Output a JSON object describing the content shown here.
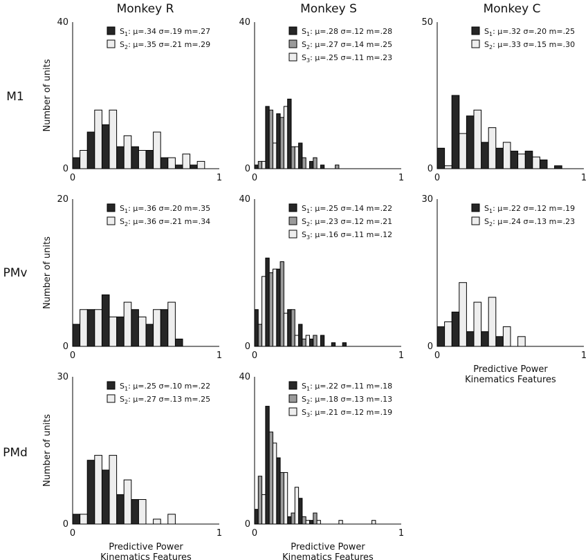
{
  "columns": [
    "Monkey R",
    "Monkey S",
    "Monkey C"
  ],
  "rows": [
    "M1",
    "PMv",
    "PMd"
  ],
  "y_axis_label": "Number of units",
  "x_axis_label_line1": "Predictive Power",
  "x_axis_label_line2": "Kinematics Features",
  "series_colors": {
    "S1": "#262626",
    "S2": "#9a9a9a",
    "S3": "#eeeeee"
  },
  "chart_data": [
    {
      "type": "bar",
      "row": "M1",
      "column": "Monkey R",
      "ylim": [
        0,
        40
      ],
      "xlim": [
        0,
        1
      ],
      "xticks": [
        "0",
        "1"
      ],
      "yticks": [
        "0",
        "40"
      ],
      "bin_width": 0.1,
      "series": [
        {
          "name": "S1",
          "color": "dark",
          "legend": {
            "label": "S",
            "sub": "1",
            "stats": ": μ=.34 σ=.19 m=.27"
          },
          "bins": [
            0.0,
            0.1,
            0.2,
            0.3,
            0.4,
            0.5,
            0.6,
            0.7,
            0.8
          ],
          "values": [
            3,
            10,
            12,
            6,
            6,
            5,
            3,
            1,
            1
          ]
        },
        {
          "name": "S2",
          "color": "white",
          "legend": {
            "label": "S",
            "sub": "2",
            "stats": ": μ=.35 σ=.21 m=.29"
          },
          "bins": [
            0.0,
            0.1,
            0.2,
            0.3,
            0.4,
            0.5,
            0.6,
            0.7,
            0.8
          ],
          "values": [
            5,
            16,
            16,
            9,
            5,
            10,
            3,
            4,
            2
          ]
        }
      ],
      "xlabel_shown": false
    },
    {
      "type": "bar",
      "row": "M1",
      "column": "Monkey S",
      "ylim": [
        0,
        40
      ],
      "xlim": [
        0,
        1
      ],
      "xticks": [
        "0",
        "1"
      ],
      "yticks": [
        "0",
        "40"
      ],
      "bin_width": 0.075,
      "series": [
        {
          "name": "S1",
          "color": "dark",
          "legend": {
            "label": "S",
            "sub": "1",
            "stats": ": μ=.28 σ=.12 m=.28"
          },
          "bins": [
            0.0,
            0.075,
            0.15,
            0.225,
            0.3,
            0.375,
            0.45,
            0.525,
            0.6,
            0.675
          ],
          "values": [
            1,
            17,
            15,
            19,
            7,
            2,
            1,
            0,
            0,
            0
          ]
        },
        {
          "name": "S2",
          "color": "grey",
          "legend": {
            "label": "S",
            "sub": "2",
            "stats": ": μ=.27 σ=.14 m=.25"
          },
          "bins": [
            0.0,
            0.075,
            0.15,
            0.225,
            0.3,
            0.375,
            0.45,
            0.525,
            0.6,
            0.675
          ],
          "values": [
            2,
            16,
            14,
            6,
            3,
            3,
            0,
            1,
            0,
            0
          ]
        },
        {
          "name": "S3",
          "color": "white",
          "legend": {
            "label": "S",
            "sub": "3",
            "stats": ": μ=.25 σ=.11 m=.23"
          },
          "bins": [
            0.0,
            0.075,
            0.15,
            0.225,
            0.3,
            0.375,
            0.45,
            0.525,
            0.6,
            0.675
          ],
          "values": [
            2,
            7,
            17,
            6,
            0,
            0,
            0,
            0,
            0,
            0
          ]
        }
      ],
      "xlabel_shown": false
    },
    {
      "type": "bar",
      "row": "M1",
      "column": "Monkey C",
      "ylim": [
        0,
        50
      ],
      "xlim": [
        0,
        1
      ],
      "xticks": [
        "0",
        "1"
      ],
      "yticks": [
        "0",
        "50"
      ],
      "bin_width": 0.1,
      "series": [
        {
          "name": "S1",
          "color": "dark",
          "legend": {
            "label": "S",
            "sub": "1",
            "stats": ": μ=.32 σ=.20 m=.25"
          },
          "bins": [
            0.0,
            0.1,
            0.2,
            0.3,
            0.4,
            0.5,
            0.6,
            0.7,
            0.8
          ],
          "values": [
            7,
            25,
            18,
            9,
            7,
            6,
            6,
            3,
            1
          ]
        },
        {
          "name": "S2",
          "color": "white",
          "legend": {
            "label": "S",
            "sub": "2",
            "stats": ": μ=.33 σ=.15 m=.30"
          },
          "bins": [
            0.0,
            0.1,
            0.2,
            0.3,
            0.4,
            0.5,
            0.6,
            0.7,
            0.8
          ],
          "values": [
            1,
            12,
            20,
            14,
            9,
            5,
            4,
            0,
            0
          ]
        }
      ],
      "xlabel_shown": false
    },
    {
      "type": "bar",
      "row": "PMv",
      "column": "Monkey R",
      "ylim": [
        0,
        20
      ],
      "xlim": [
        0,
        1
      ],
      "xticks": [
        "0",
        "1"
      ],
      "yticks": [
        "0",
        "20"
      ],
      "bin_width": 0.1,
      "series": [
        {
          "name": "S1",
          "color": "dark",
          "legend": {
            "label": "S",
            "sub": "1",
            "stats": ": μ=.36 σ=.20 m=.35"
          },
          "bins": [
            0.0,
            0.1,
            0.2,
            0.3,
            0.4,
            0.5,
            0.6,
            0.7
          ],
          "values": [
            3,
            5,
            7,
            4,
            5,
            3,
            5,
            1
          ]
        },
        {
          "name": "S2",
          "color": "white",
          "legend": {
            "label": "S",
            "sub": "2",
            "stats": ": μ=.36 σ=.21 m=.34"
          },
          "bins": [
            0.0,
            0.1,
            0.2,
            0.3,
            0.4,
            0.5,
            0.6,
            0.7
          ],
          "values": [
            5,
            5,
            4,
            6,
            4,
            5,
            6,
            0
          ]
        }
      ],
      "xlabel_shown": false
    },
    {
      "type": "bar",
      "row": "PMv",
      "column": "Monkey S",
      "ylim": [
        0,
        40
      ],
      "xlim": [
        0,
        1
      ],
      "xticks": [
        "0",
        "1"
      ],
      "yticks": [
        "0",
        "40"
      ],
      "bin_width": 0.075,
      "series": [
        {
          "name": "S1",
          "color": "dark",
          "legend": {
            "label": "S",
            "sub": "1",
            "stats": ": μ=.25 σ=.14 m=.22"
          },
          "bins": [
            0.0,
            0.075,
            0.15,
            0.225,
            0.3,
            0.375,
            0.45,
            0.525,
            0.6,
            0.675
          ],
          "values": [
            10,
            24,
            21,
            10,
            6,
            2,
            3,
            1,
            1,
            0
          ]
        },
        {
          "name": "S2",
          "color": "grey",
          "legend": {
            "label": "S",
            "sub": "2",
            "stats": ": μ=.23 σ=.12 m=.21"
          },
          "bins": [
            0.0,
            0.075,
            0.15,
            0.225,
            0.3,
            0.375,
            0.45,
            0.525,
            0.6,
            0.675
          ],
          "values": [
            6,
            20,
            23,
            10,
            2,
            3,
            0,
            0,
            0,
            0
          ]
        },
        {
          "name": "S3",
          "color": "white",
          "legend": {
            "label": "S",
            "sub": "3",
            "stats": ": μ=.16 σ=.11 m=.12"
          },
          "bins": [
            0.0,
            0.075,
            0.15,
            0.225,
            0.3,
            0.375,
            0.45,
            0.525,
            0.6,
            0.675
          ],
          "values": [
            19,
            21,
            9,
            3,
            3,
            0,
            0,
            0,
            0,
            0
          ]
        }
      ],
      "xlabel_shown": false
    },
    {
      "type": "bar",
      "row": "PMv",
      "column": "Monkey C",
      "ylim": [
        0,
        30
      ],
      "xlim": [
        0,
        1
      ],
      "xticks": [
        "0",
        "1"
      ],
      "yticks": [
        "0",
        "30"
      ],
      "bin_width": 0.1,
      "series": [
        {
          "name": "S1",
          "color": "dark",
          "legend": {
            "label": "S",
            "sub": "1",
            "stats": ": μ=.22 σ=.12 m=.19"
          },
          "bins": [
            0.0,
            0.1,
            0.2,
            0.3,
            0.4,
            0.5
          ],
          "values": [
            4,
            7,
            3,
            3,
            2,
            0
          ]
        },
        {
          "name": "S2",
          "color": "white",
          "legend": {
            "label": "S",
            "sub": "2",
            "stats": ": μ=.24 σ=.13 m=.23"
          },
          "bins": [
            0.0,
            0.1,
            0.2,
            0.3,
            0.4,
            0.5
          ],
          "values": [
            5,
            13,
            9,
            10,
            4,
            2
          ]
        }
      ],
      "xlabel_shown": true
    },
    {
      "type": "bar",
      "row": "PMd",
      "column": "Monkey R",
      "ylim": [
        0,
        30
      ],
      "xlim": [
        0,
        1
      ],
      "xticks": [
        "0",
        "1"
      ],
      "yticks": [
        "0",
        "30"
      ],
      "bin_width": 0.1,
      "series": [
        {
          "name": "S1",
          "color": "dark",
          "legend": {
            "label": "S",
            "sub": "1",
            "stats": ": μ=.25 σ=.10 m=.22"
          },
          "bins": [
            0.0,
            0.1,
            0.2,
            0.3,
            0.4,
            0.5,
            0.6
          ],
          "values": [
            2,
            13,
            11,
            6,
            5,
            0,
            0
          ]
        },
        {
          "name": "S2",
          "color": "white",
          "legend": {
            "label": "S",
            "sub": "2",
            "stats": ": μ=.27 σ=.13 m=.25"
          },
          "bins": [
            0.0,
            0.1,
            0.2,
            0.3,
            0.4,
            0.5,
            0.6
          ],
          "values": [
            2,
            14,
            14,
            9,
            5,
            1,
            2
          ]
        }
      ],
      "xlabel_shown": true
    },
    {
      "type": "bar",
      "row": "PMd",
      "column": "Monkey S",
      "ylim": [
        0,
        40
      ],
      "xlim": [
        0,
        1
      ],
      "xticks": [
        "0",
        "1"
      ],
      "yticks": [
        "0",
        "40"
      ],
      "bin_width": 0.075,
      "series": [
        {
          "name": "S1",
          "color": "dark",
          "legend": {
            "label": "S",
            "sub": "1",
            "stats": ": μ=.22 σ=.11 m=.18"
          },
          "bins": [
            0.0,
            0.075,
            0.15,
            0.225,
            0.3,
            0.375,
            0.45,
            0.525,
            0.6,
            0.675,
            0.75
          ],
          "values": [
            4,
            32,
            18,
            2,
            7,
            1,
            0,
            0,
            0,
            0,
            0
          ]
        },
        {
          "name": "S2",
          "color": "grey",
          "legend": {
            "label": "S",
            "sub": "2",
            "stats": ": μ=.18 σ=.13 m=.13"
          },
          "bins": [
            0.0,
            0.075,
            0.15,
            0.225,
            0.3,
            0.375,
            0.45,
            0.525,
            0.6,
            0.675,
            0.75
          ],
          "values": [
            13,
            25,
            14,
            3,
            2,
            3,
            0,
            0,
            0,
            0,
            0
          ]
        },
        {
          "name": "S3",
          "color": "white",
          "legend": {
            "label": "S",
            "sub": "3",
            "stats": ": μ=.21 σ=.12 m=.19"
          },
          "bins": [
            0.0,
            0.075,
            0.15,
            0.225,
            0.3,
            0.375,
            0.45,
            0.525,
            0.6,
            0.675,
            0.75
          ],
          "values": [
            8,
            22,
            14,
            10,
            1,
            1,
            0,
            1,
            0,
            0,
            1
          ]
        }
      ],
      "xlabel_shown": true
    }
  ]
}
